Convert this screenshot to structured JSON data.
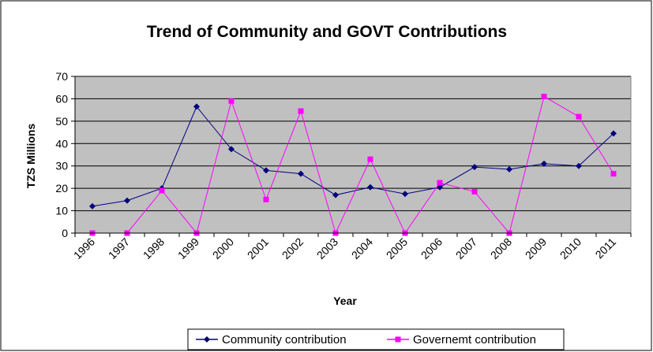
{
  "chart_data": {
    "type": "line",
    "title": "Trend of Community and GOVT Contributions",
    "xlabel": "Year",
    "ylabel": "TZS Millions",
    "categories": [
      "1996",
      "1997",
      "1998",
      "1999",
      "2000",
      "2001",
      "2002",
      "2003",
      "2004",
      "2005",
      "2006",
      "2007",
      "2008",
      "2009",
      "2010",
      "2011"
    ],
    "ylim": [
      0,
      70
    ],
    "yticks": [
      "0",
      "10",
      "20",
      "30",
      "40",
      "50",
      "60",
      "70"
    ],
    "grid": true,
    "legend_position": "bottom",
    "plot_background": "#c0c0c0",
    "series": [
      {
        "name": "Community contribution",
        "color": "#000080",
        "marker": "diamond",
        "values": [
          12,
          14.5,
          20,
          56.5,
          37.5,
          28,
          26.5,
          17,
          20.5,
          17.5,
          20.5,
          29.5,
          28.5,
          31,
          30,
          44.5
        ]
      },
      {
        "name": "Governemt contribution",
        "color": "#ff00ff",
        "marker": "square",
        "values": [
          0,
          0,
          19,
          0,
          59,
          15,
          54.5,
          0,
          33,
          0,
          22.5,
          18.5,
          0,
          61,
          52,
          26.5
        ]
      }
    ]
  }
}
